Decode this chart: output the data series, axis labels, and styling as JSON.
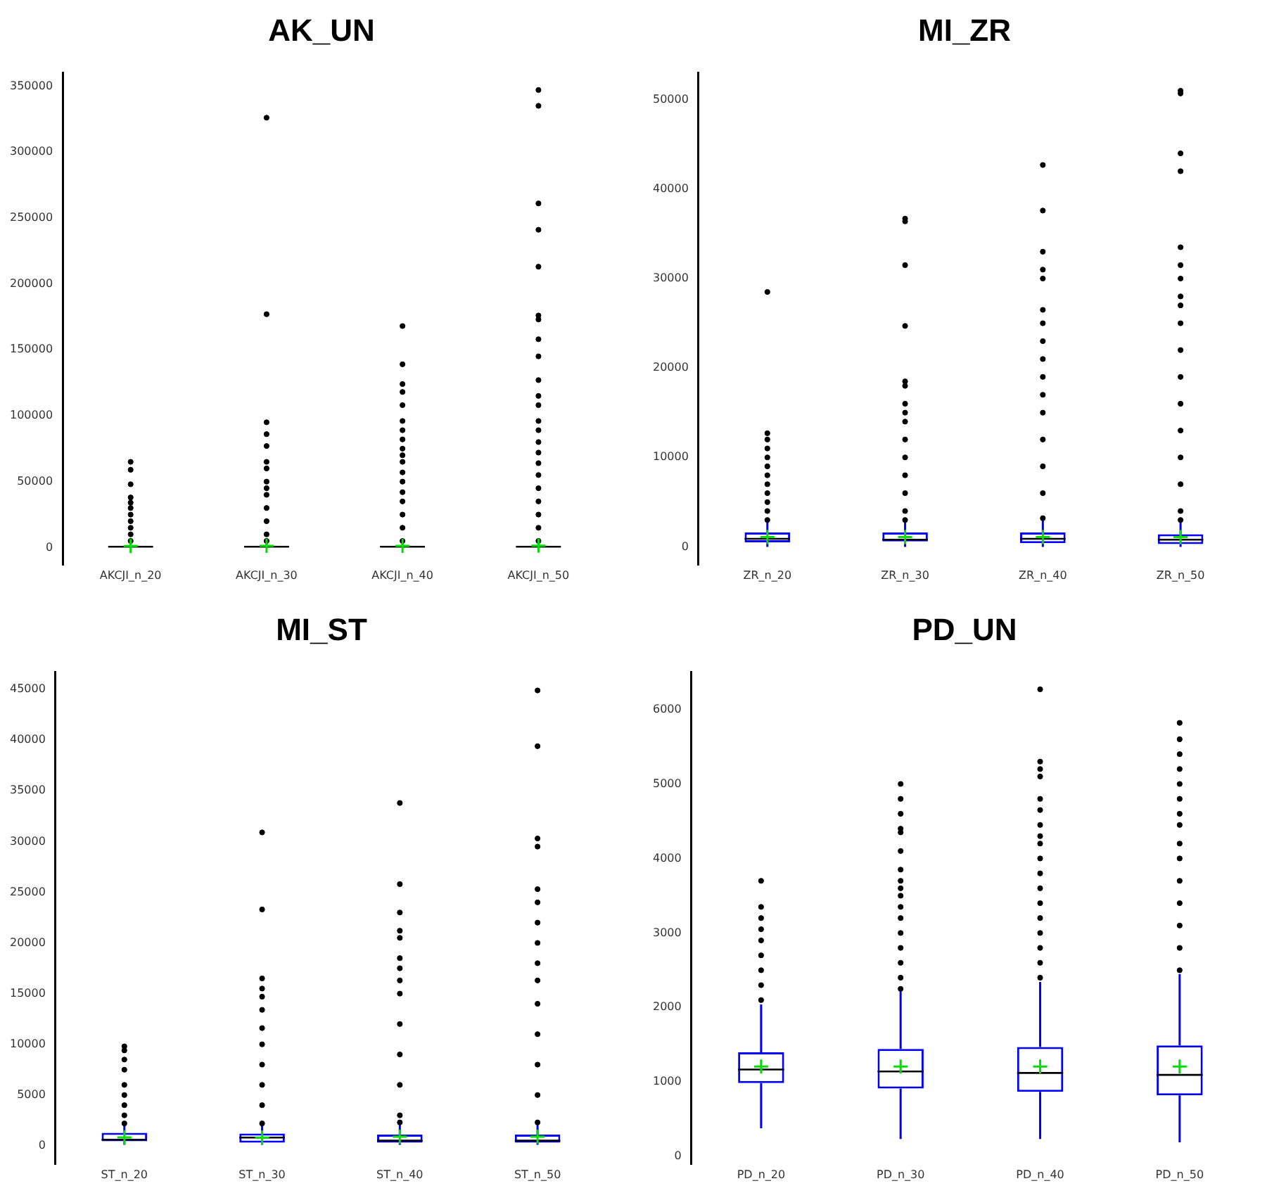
{
  "chart_data": [
    {
      "type": "box",
      "title": "AK_UN",
      "categories": [
        "AKCJI_n_20",
        "AKCJI_n_30",
        "AKCJI_n_40",
        "AKCJI_n_50"
      ],
      "ylim": [
        -13000,
        360000
      ],
      "yticks": [
        0,
        50000,
        100000,
        150000,
        200000,
        250000,
        300000,
        350000
      ],
      "grid": false,
      "series": [
        {
          "color": "#0000ff",
          "boxes": [
            {
              "low": 0,
              "q1": 200,
              "median": 600,
              "q3": 1200,
              "high": 2500,
              "mean": 1200,
              "outliers": [
                65000,
                59000,
                48000,
                38000,
                34000,
                30000,
                25000,
                20000,
                15000,
                10000,
                5000
              ]
            },
            {
              "low": 0,
              "q1": 200,
              "median": 600,
              "q3": 1300,
              "high": 2800,
              "mean": 1300,
              "outliers": [
                326000,
                177000,
                95000,
                86000,
                77000,
                65000,
                60000,
                50000,
                45000,
                40000,
                30000,
                20000,
                10000,
                5000
              ]
            },
            {
              "low": 0,
              "q1": 200,
              "median": 600,
              "q3": 1300,
              "high": 2800,
              "mean": 1300,
              "outliers": [
                168000,
                139000,
                124000,
                118000,
                108000,
                96000,
                89000,
                82000,
                75000,
                70000,
                65000,
                57000,
                50000,
                42000,
                35000,
                25000,
                15000,
                5000
              ]
            },
            {
              "low": 0,
              "q1": 200,
              "median": 600,
              "q3": 1300,
              "high": 2800,
              "mean": 1400,
              "outliers": [
                347000,
                335000,
                261000,
                241000,
                213000,
                176000,
                173000,
                158000,
                145000,
                127000,
                115000,
                108000,
                96000,
                89000,
                80000,
                72000,
                64000,
                55000,
                45000,
                35000,
                25000,
                15000,
                5000
              ]
            }
          ]
        }
      ]
    },
    {
      "type": "box",
      "title": "MI_ZR",
      "categories": [
        "ZR_n_20",
        "ZR_n_30",
        "ZR_n_40",
        "ZR_n_50"
      ],
      "ylim": [
        -2000,
        53000
      ],
      "yticks": [
        0,
        10000,
        20000,
        30000,
        40000,
        50000
      ],
      "grid": false,
      "series": [
        {
          "color": "#0000ff",
          "boxes": [
            {
              "low": 0,
              "q1": 500,
              "median": 900,
              "q3": 1600,
              "high": 2800,
              "mean": 1100,
              "outliers": [
                28500,
                12700,
                12000,
                11000,
                10000,
                9000,
                8000,
                7000,
                6000,
                5000,
                4000,
                3000
              ]
            },
            {
              "low": 0,
              "q1": 600,
              "median": 800,
              "q3": 1600,
              "high": 2800,
              "mean": 1100,
              "outliers": [
                36700,
                36400,
                31500,
                24700,
                18500,
                18000,
                16000,
                15000,
                14000,
                12000,
                10000,
                8000,
                6000,
                4000,
                3000
              ]
            },
            {
              "low": 0,
              "q1": 400,
              "median": 900,
              "q3": 1600,
              "high": 3000,
              "mean": 1100,
              "outliers": [
                42700,
                37600,
                33000,
                31000,
                30000,
                26500,
                25000,
                23000,
                21000,
                19000,
                17000,
                15000,
                12000,
                9000,
                6000,
                3200
              ]
            },
            {
              "low": 0,
              "q1": 300,
              "median": 800,
              "q3": 1400,
              "high": 2800,
              "mean": 1100,
              "outliers": [
                51000,
                50700,
                44000,
                42000,
                33500,
                31500,
                30000,
                28000,
                27000,
                25000,
                22000,
                19000,
                16000,
                13000,
                10000,
                7000,
                4000,
                3000
              ]
            }
          ]
        }
      ]
    },
    {
      "type": "box",
      "title": "MI_ST",
      "categories": [
        "ST_n_20",
        "ST_n_30",
        "ST_n_40",
        "ST_n_50"
      ],
      "ylim": [
        -1800,
        46700
      ],
      "yticks": [
        0,
        5000,
        10000,
        15000,
        20000,
        25000,
        30000,
        35000,
        40000,
        45000
      ],
      "grid": false,
      "series": [
        {
          "color": "#0000ff",
          "boxes": [
            {
              "low": 100,
              "q1": 440,
              "median": 600,
              "q3": 1270,
              "high": 2000,
              "mean": 830,
              "outliers": [
                9800,
                9400,
                8500,
                7500,
                6000,
                5000,
                4000,
                3000,
                2200
              ]
            },
            {
              "low": 100,
              "q1": 300,
              "median": 800,
              "q3": 1200,
              "high": 2100,
              "mean": 800,
              "outliers": [
                30900,
                23300,
                16500,
                15500,
                14700,
                13400,
                11600,
                10000,
                8000,
                6000,
                4000,
                2200
              ]
            },
            {
              "low": 100,
              "q1": 300,
              "median": 500,
              "q3": 1100,
              "high": 2200,
              "mean": 900,
              "outliers": [
                33800,
                25800,
                23000,
                21200,
                20500,
                18500,
                17500,
                16300,
                15000,
                12000,
                9000,
                6000,
                3000,
                2300
              ]
            },
            {
              "low": 100,
              "q1": 300,
              "median": 500,
              "q3": 1100,
              "high": 2200,
              "mean": 900,
              "outliers": [
                44900,
                39400,
                30300,
                29500,
                25300,
                24000,
                22000,
                20000,
                18000,
                16300,
                14000,
                11000,
                8000,
                5000,
                2300
              ]
            }
          ]
        }
      ]
    },
    {
      "type": "box",
      "title": "PD_UN",
      "categories": [
        "PD_n_20",
        "PD_n_30",
        "PD_n_40",
        "PD_n_50"
      ],
      "ylim": [
        -100,
        6500
      ],
      "yticks": [
        0,
        1000,
        2000,
        3000,
        4000,
        5000,
        6000
      ],
      "grid": false,
      "series": [
        {
          "color": "#0000ff",
          "boxes": [
            {
              "low": 380,
              "q1": 985,
              "median": 1168,
              "q3": 1398,
              "high": 2040,
              "mean": 1208,
              "outliers": [
                3700,
                3350,
                3200,
                3050,
                2900,
                2700,
                2500,
                2300,
                2100
              ]
            },
            {
              "low": 236,
              "q1": 912,
              "median": 1142,
              "q3": 1444,
              "high": 2219,
              "mean": 1208,
              "outliers": [
                5000,
                4800,
                4600,
                4400,
                4350,
                4100,
                3850,
                3700,
                3600,
                3500,
                3350,
                3200,
                3000,
                2800,
                2600,
                2400,
                2250
              ]
            },
            {
              "low": 236,
              "q1": 867,
              "median": 1122,
              "q3": 1470,
              "high": 2344,
              "mean": 1208,
              "outliers": [
                6270,
                5300,
                5200,
                5100,
                4800,
                4650,
                4450,
                4300,
                4200,
                4000,
                3800,
                3600,
                3400,
                3200,
                3000,
                2800,
                2600,
                2400
              ]
            },
            {
              "low": 190,
              "q1": 820,
              "median": 1096,
              "q3": 1490,
              "high": 2449,
              "mean": 1208,
              "outliers": [
                5820,
                5600,
                5400,
                5200,
                5000,
                4800,
                4600,
                4450,
                4200,
                4000,
                3700,
                3400,
                3100,
                2800,
                2500
              ]
            }
          ]
        }
      ]
    }
  ]
}
